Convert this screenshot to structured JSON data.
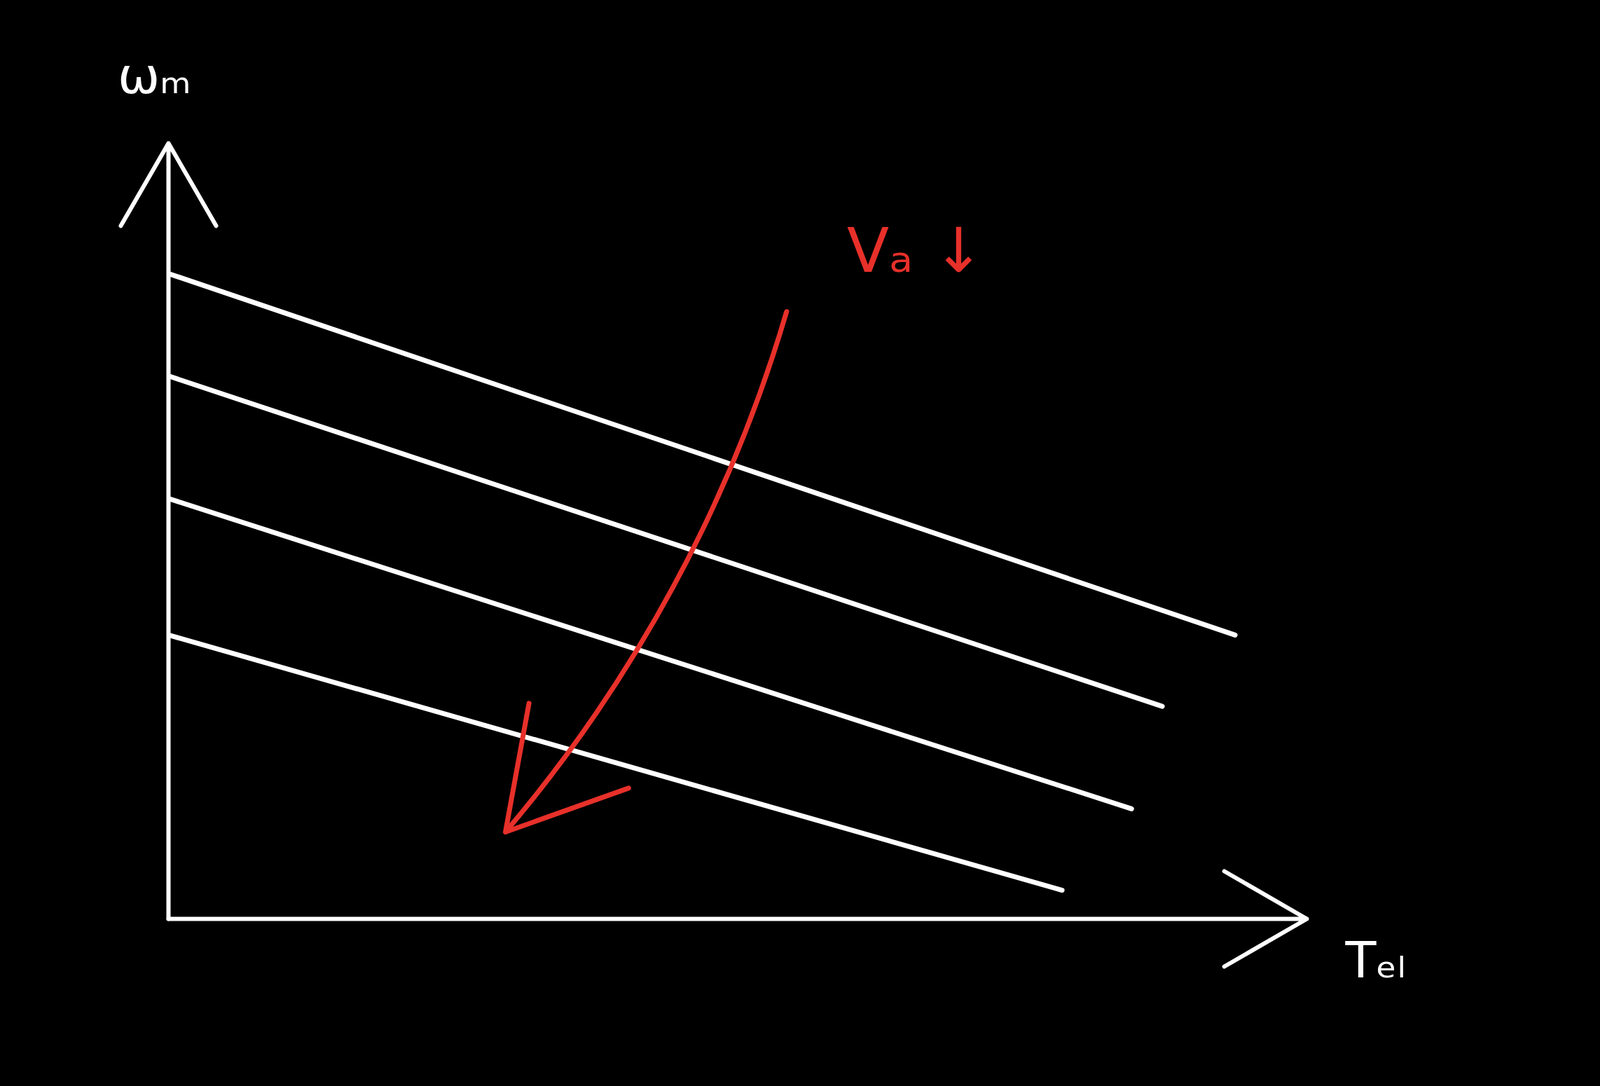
{
  "chart_data": {
    "type": "line",
    "x_label": "Tₑₗ",
    "y_label": "ωₘ",
    "xlim": [
      0,
      100
    ],
    "ylim": [
      0,
      100
    ],
    "tick_labels": false,
    "grid": false,
    "series": [
      {
        "color": "#ffffff",
        "x": [
          0,
          93.7
        ],
        "values": [
          83.2,
          36.6
        ]
      },
      {
        "color": "#ffffff",
        "x": [
          0,
          87.3
        ],
        "values": [
          70,
          27.4
        ]
      },
      {
        "color": "#ffffff",
        "x": [
          0,
          84.6
        ],
        "values": [
          54.2,
          14.2
        ]
      },
      {
        "color": "#ffffff",
        "x": [
          0,
          78.5
        ],
        "values": [
          36.6,
          3.7
        ]
      }
    ],
    "annotations": [
      {
        "text": "Vₐ ↓",
        "x": 59.6,
        "y": 86,
        "color": "#e8302a",
        "arrow": [
          [
            54.3,
            78.3
          ],
          [
            29.6,
            11.2
          ]
        ]
      }
    ]
  }
}
